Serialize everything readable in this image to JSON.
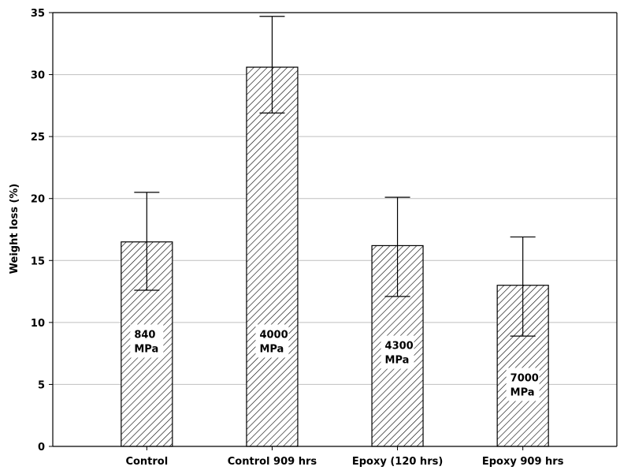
{
  "chart_data": {
    "type": "bar",
    "title": "",
    "xlabel": "",
    "ylabel": "Weight loss (%)",
    "ylim": [
      0,
      35
    ],
    "yticks": [
      0,
      5,
      10,
      15,
      20,
      25,
      30,
      35
    ],
    "grid": "horizontal",
    "categories": [
      "Control",
      "Control 909 hrs",
      "Epoxy (120 hrs)",
      "Epoxy 909 hrs"
    ],
    "values": [
      16.5,
      30.6,
      16.2,
      13.0
    ],
    "error_bars": [
      {
        "low": 12.6,
        "high": 20.5
      },
      {
        "low": 26.9,
        "high": 34.7
      },
      {
        "low": 12.1,
        "high": 20.1
      },
      {
        "low": 8.9,
        "high": 16.9
      }
    ],
    "bar_labels": [
      [
        "840",
        "MPa"
      ],
      [
        "4000",
        "MPa"
      ],
      [
        "4300",
        "MPa"
      ],
      [
        "7000",
        "MPa"
      ]
    ],
    "bar_label_levels": [
      8.5,
      8.5,
      7.6,
      5.0
    ],
    "fill_pattern": "diagonal-hatch",
    "colors": {
      "bar_stroke": "#000000",
      "hatch": "#000000",
      "grid": "#bfbfbf"
    }
  }
}
